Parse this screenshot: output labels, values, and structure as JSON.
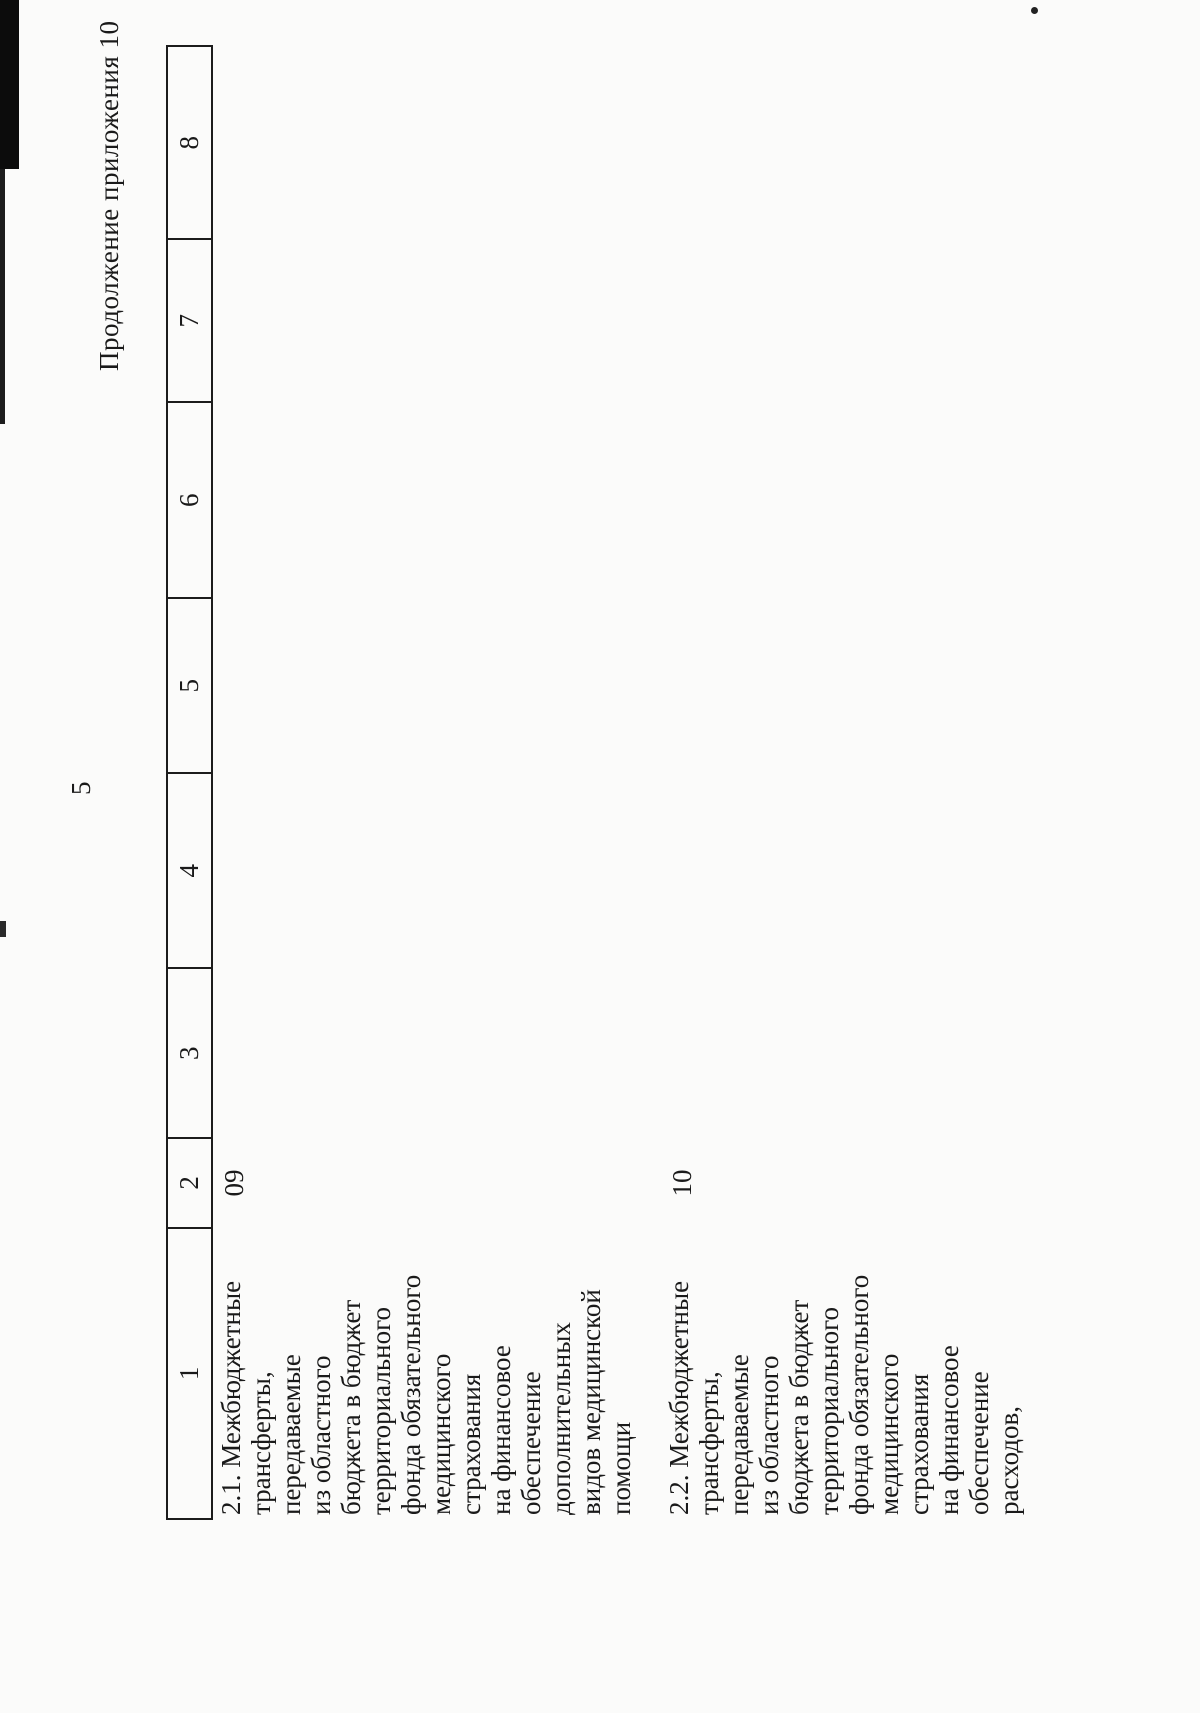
{
  "page": {
    "number": "5",
    "continuation_note": "Продолжение приложения 10",
    "ink_color": "#1a1a1a",
    "paper_color": "#fbfbfa"
  },
  "table": {
    "column_headers": [
      "1",
      "2",
      "3",
      "4",
      "5",
      "6",
      "7",
      "8"
    ],
    "rows": [
      {
        "label": "2.1. Межбюджетные\nтрансферты,\nпередаваемые\nиз областного\nбюджета в бюджет\nтерриториального\nфонда обязательного\nмедицинского\nстрахования\nна финансовое\nобеспечение\nдополнительных\nвидов медицинской\nпомощи",
        "code": "09"
      },
      {
        "label": "2.2. Межбюджетные\nтрансферты,\nпередаваемые\nиз областного\nбюджета в бюджет\nтерриториального\nфонда обязательного\nмедицинского\nстрахования\nна финансовое\nобеспечение\nрасходов,",
        "code": "10"
      }
    ]
  }
}
